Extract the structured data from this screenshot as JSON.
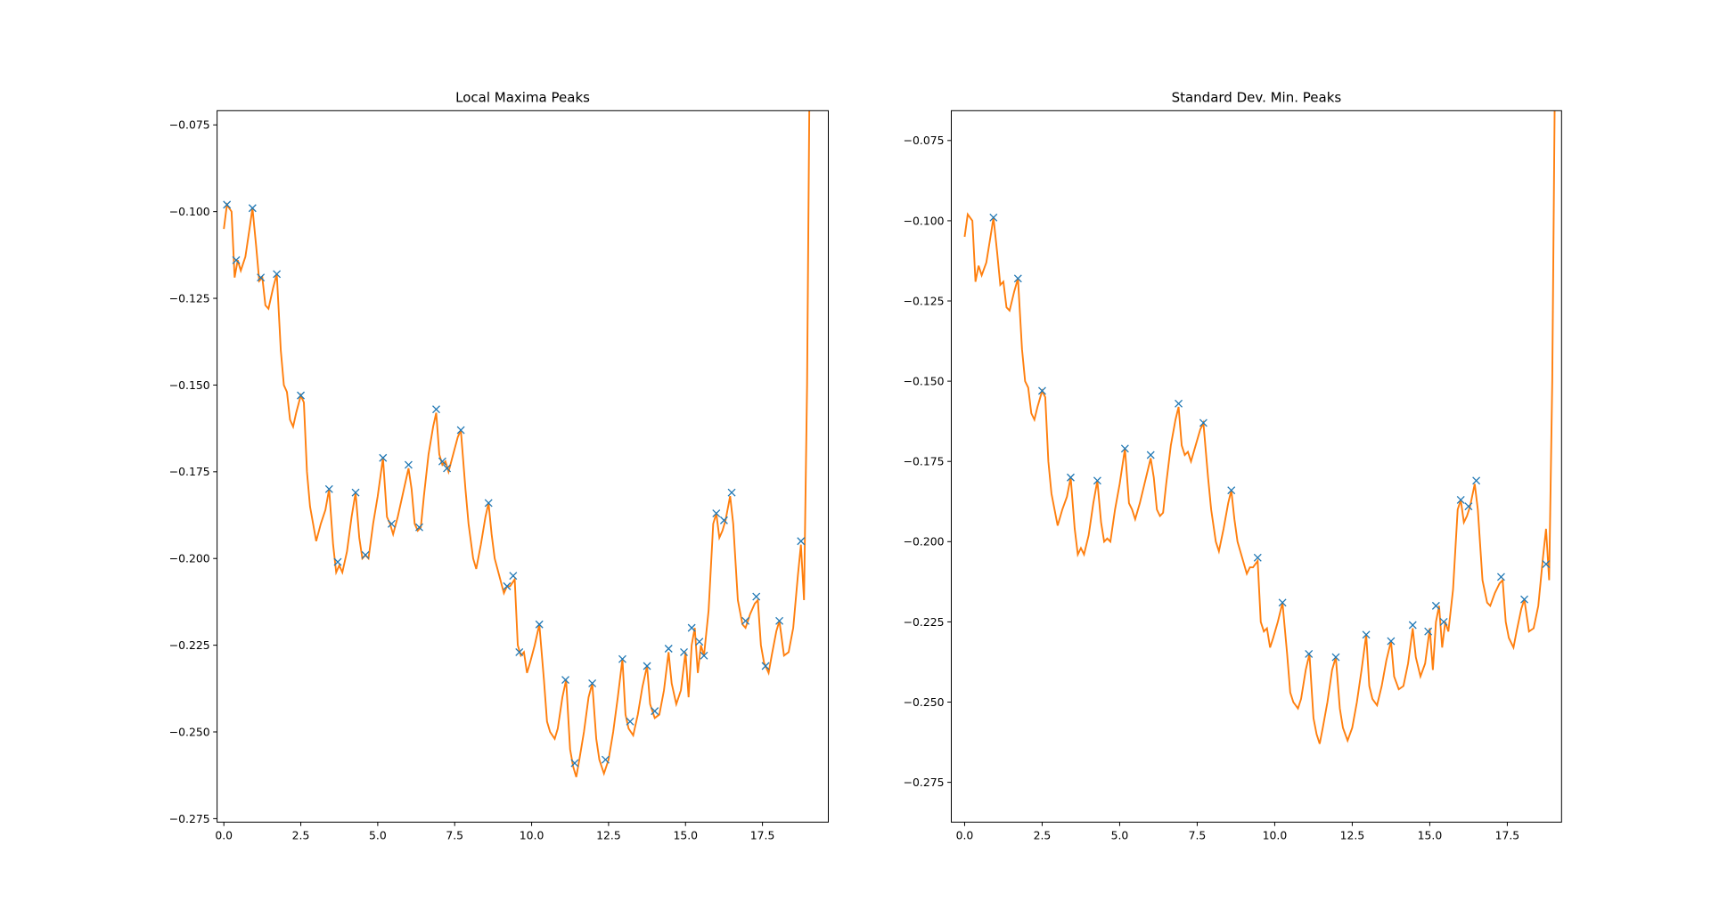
{
  "chart_data": [
    {
      "type": "line",
      "title": "Local Maxima Peaks",
      "xlim": [
        -0.22,
        19.64
      ],
      "ylim": [
        -0.276,
        -0.0709
      ],
      "xticks": [
        {
          "value": 0,
          "label": "0.0"
        },
        2.5,
        {
          "value": 5,
          "label": "5.0"
        },
        7.5,
        {
          "value": 10,
          "label": "10.0"
        },
        12.5,
        {
          "value": 15,
          "label": "15.0"
        },
        17.5
      ],
      "yticks": [
        {
          "value": -0.275,
          "label": "−0.275"
        },
        {
          "value": -0.25,
          "label": "−0.250"
        },
        {
          "value": -0.225,
          "label": "−0.225"
        },
        {
          "value": -0.2,
          "label": "−0.200"
        },
        {
          "value": -0.175,
          "label": "−0.175"
        },
        {
          "value": -0.15,
          "label": "−0.150"
        },
        {
          "value": -0.125,
          "label": "−0.125"
        },
        {
          "value": -0.1,
          "label": "−0.100"
        },
        {
          "value": -0.075,
          "label": "−0.075"
        }
      ],
      "series": [
        {
          "type": "line",
          "color": "#ff7f0e",
          "x": [
            0,
            0.1,
            0.25,
            0.35,
            0.45,
            0.55,
            0.7,
            0.85,
            0.93,
            1.05,
            1.15,
            1.25,
            1.35,
            1.45,
            1.6,
            1.72,
            1.85,
            1.95,
            2.05,
            2.15,
            2.25,
            2.35,
            2.5,
            2.6,
            2.7,
            2.8,
            2.9,
            3.0,
            3.15,
            3.3,
            3.42,
            3.55,
            3.65,
            3.75,
            3.85,
            4.0,
            4.15,
            4.28,
            4.4,
            4.5,
            4.6,
            4.7,
            4.85,
            5.0,
            5.17,
            5.3,
            5.4,
            5.5,
            5.65,
            5.8,
            6.0,
            6.1,
            6.2,
            6.3,
            6.4,
            6.5,
            6.65,
            6.8,
            6.9,
            7.0,
            7.1,
            7.2,
            7.3,
            7.45,
            7.6,
            7.7,
            7.85,
            7.95,
            8.1,
            8.2,
            8.35,
            8.5,
            8.6,
            8.7,
            8.8,
            8.95,
            9.1,
            9.2,
            9.3,
            9.45,
            9.55,
            9.65,
            9.75,
            9.85,
            9.95,
            10.1,
            10.25,
            10.4,
            10.5,
            10.6,
            10.75,
            10.85,
            11.0,
            11.12,
            11.25,
            11.35,
            11.45,
            11.55,
            11.7,
            11.85,
            11.97,
            12.1,
            12.2,
            12.35,
            12.5,
            12.65,
            12.8,
            12.95,
            13.05,
            13.15,
            13.3,
            13.45,
            13.6,
            13.75,
            13.85,
            14.0,
            14.15,
            14.3,
            14.45,
            14.55,
            14.7,
            14.85,
            15.0,
            15.1,
            15.2,
            15.3,
            15.4,
            15.5,
            15.6,
            15.75,
            15.9,
            16.0,
            16.1,
            16.2,
            16.3,
            16.45,
            16.55,
            16.7,
            16.85,
            16.95,
            17.1,
            17.25,
            17.35,
            17.45,
            17.55,
            17.7,
            17.8,
            17.95,
            18.05,
            18.2,
            18.35,
            18.5,
            18.65,
            18.75,
            18.85,
            18.95,
            19.05
          ],
          "values": [
            -0.105,
            -0.098,
            -0.1,
            -0.119,
            -0.114,
            -0.117,
            -0.113,
            -0.104,
            -0.099,
            -0.11,
            -0.12,
            -0.119,
            -0.127,
            -0.128,
            -0.122,
            -0.118,
            -0.14,
            -0.15,
            -0.152,
            -0.16,
            -0.162,
            -0.158,
            -0.153,
            -0.155,
            -0.175,
            -0.185,
            -0.19,
            -0.195,
            -0.19,
            -0.186,
            -0.18,
            -0.196,
            -0.204,
            -0.202,
            -0.204,
            -0.198,
            -0.188,
            -0.181,
            -0.194,
            -0.2,
            -0.199,
            -0.2,
            -0.19,
            -0.182,
            -0.171,
            -0.188,
            -0.19,
            -0.193,
            -0.188,
            -0.182,
            -0.174,
            -0.18,
            -0.19,
            -0.192,
            -0.191,
            -0.182,
            -0.17,
            -0.162,
            -0.158,
            -0.17,
            -0.173,
            -0.172,
            -0.175,
            -0.17,
            -0.165,
            -0.163,
            -0.18,
            -0.19,
            -0.2,
            -0.203,
            -0.196,
            -0.188,
            -0.184,
            -0.193,
            -0.2,
            -0.205,
            -0.21,
            -0.208,
            -0.208,
            -0.206,
            -0.225,
            -0.228,
            -0.227,
            -0.233,
            -0.23,
            -0.225,
            -0.219,
            -0.235,
            -0.247,
            -0.25,
            -0.252,
            -0.249,
            -0.24,
            -0.235,
            -0.255,
            -0.26,
            -0.263,
            -0.258,
            -0.25,
            -0.24,
            -0.236,
            -0.252,
            -0.258,
            -0.262,
            -0.258,
            -0.25,
            -0.24,
            -0.229,
            -0.245,
            -0.249,
            -0.251,
            -0.245,
            -0.237,
            -0.231,
            -0.242,
            -0.246,
            -0.245,
            -0.238,
            -0.227,
            -0.236,
            -0.242,
            -0.238,
            -0.227,
            -0.24,
            -0.225,
            -0.22,
            -0.233,
            -0.225,
            -0.228,
            -0.215,
            -0.19,
            -0.187,
            -0.194,
            -0.192,
            -0.189,
            -0.182,
            -0.19,
            -0.212,
            -0.219,
            -0.22,
            -0.216,
            -0.213,
            -0.212,
            -0.225,
            -0.23,
            -0.233,
            -0.228,
            -0.221,
            -0.218,
            -0.228,
            -0.227,
            -0.22,
            -0.205,
            -0.196,
            -0.212,
            -0.15,
            -0.04
          ]
        },
        {
          "type": "scatter",
          "color": "#1f77b4",
          "x": [
            0.1,
            0.4,
            0.93,
            1.2,
            1.72,
            2.5,
            3.42,
            3.7,
            4.28,
            4.6,
            5.17,
            5.45,
            6.0,
            6.35,
            6.9,
            7.1,
            7.25,
            7.7,
            8.6,
            9.2,
            9.4,
            9.6,
            10.25,
            11.1,
            11.4,
            11.97,
            12.4,
            12.95,
            13.2,
            13.75,
            14.0,
            14.45,
            14.95,
            15.2,
            15.45,
            15.6,
            16.0,
            16.25,
            16.5,
            16.95,
            17.3,
            17.6,
            18.05,
            18.75
          ],
          "values": [
            -0.098,
            -0.114,
            -0.099,
            -0.119,
            -0.118,
            -0.153,
            -0.18,
            -0.201,
            -0.181,
            -0.199,
            -0.171,
            -0.19,
            -0.173,
            -0.191,
            -0.157,
            -0.172,
            -0.174,
            -0.163,
            -0.184,
            -0.208,
            -0.205,
            -0.227,
            -0.219,
            -0.235,
            -0.259,
            -0.236,
            -0.258,
            -0.229,
            -0.247,
            -0.231,
            -0.244,
            -0.226,
            -0.227,
            -0.22,
            -0.224,
            -0.228,
            -0.187,
            -0.189,
            -0.181,
            -0.218,
            -0.211,
            -0.231,
            -0.218,
            -0.195
          ]
        }
      ]
    },
    {
      "type": "line",
      "title": "Standard Dev. Min. Peaks",
      "xlim": [
        -0.43,
        19.25
      ],
      "ylim": [
        -0.2874,
        -0.0657
      ],
      "xticks": [
        {
          "value": 0,
          "label": "0.0"
        },
        2.5,
        {
          "value": 5,
          "label": "5.0"
        },
        7.5,
        {
          "value": 10,
          "label": "10.0"
        },
        12.5,
        {
          "value": 15,
          "label": "15.0"
        },
        17.5
      ],
      "yticks": [
        {
          "value": -0.275,
          "label": "−0.275"
        },
        {
          "value": -0.25,
          "label": "−0.250"
        },
        {
          "value": -0.225,
          "label": "−0.225"
        },
        {
          "value": -0.2,
          "label": "−0.200"
        },
        {
          "value": -0.175,
          "label": "−0.175"
        },
        {
          "value": -0.15,
          "label": "−0.150"
        },
        {
          "value": -0.125,
          "label": "−0.125"
        },
        {
          "value": -0.1,
          "label": "−0.100"
        },
        {
          "value": -0.075,
          "label": "−0.075"
        }
      ],
      "series": [
        {
          "type": "line",
          "color": "#ff7f0e",
          "x": [
            0,
            0.1,
            0.25,
            0.35,
            0.45,
            0.55,
            0.7,
            0.85,
            0.93,
            1.05,
            1.15,
            1.25,
            1.35,
            1.45,
            1.6,
            1.72,
            1.85,
            1.95,
            2.05,
            2.15,
            2.25,
            2.35,
            2.5,
            2.6,
            2.7,
            2.8,
            2.9,
            3.0,
            3.15,
            3.3,
            3.42,
            3.55,
            3.65,
            3.75,
            3.85,
            4.0,
            4.15,
            4.28,
            4.4,
            4.5,
            4.6,
            4.7,
            4.85,
            5.0,
            5.17,
            5.3,
            5.4,
            5.5,
            5.65,
            5.8,
            6.0,
            6.1,
            6.2,
            6.3,
            6.4,
            6.5,
            6.65,
            6.8,
            6.9,
            7.0,
            7.1,
            7.2,
            7.3,
            7.45,
            7.6,
            7.7,
            7.85,
            7.95,
            8.1,
            8.2,
            8.35,
            8.5,
            8.6,
            8.7,
            8.8,
            8.95,
            9.1,
            9.2,
            9.3,
            9.45,
            9.55,
            9.65,
            9.75,
            9.85,
            9.95,
            10.1,
            10.25,
            10.4,
            10.5,
            10.6,
            10.75,
            10.85,
            11.0,
            11.12,
            11.25,
            11.35,
            11.45,
            11.55,
            11.7,
            11.85,
            11.97,
            12.1,
            12.2,
            12.35,
            12.5,
            12.65,
            12.8,
            12.95,
            13.05,
            13.15,
            13.3,
            13.45,
            13.6,
            13.75,
            13.85,
            14.0,
            14.15,
            14.3,
            14.45,
            14.55,
            14.7,
            14.85,
            15.0,
            15.1,
            15.2,
            15.3,
            15.4,
            15.5,
            15.6,
            15.75,
            15.9,
            16.0,
            16.1,
            16.2,
            16.3,
            16.45,
            16.55,
            16.7,
            16.85,
            16.95,
            17.1,
            17.25,
            17.35,
            17.45,
            17.55,
            17.7,
            17.8,
            17.95,
            18.05,
            18.2,
            18.35,
            18.5,
            18.65,
            18.75,
            18.85,
            18.95,
            19.05
          ],
          "values": [
            -0.105,
            -0.098,
            -0.1,
            -0.119,
            -0.114,
            -0.117,
            -0.113,
            -0.104,
            -0.099,
            -0.11,
            -0.12,
            -0.119,
            -0.127,
            -0.128,
            -0.122,
            -0.118,
            -0.14,
            -0.15,
            -0.152,
            -0.16,
            -0.162,
            -0.158,
            -0.153,
            -0.155,
            -0.175,
            -0.185,
            -0.19,
            -0.195,
            -0.19,
            -0.186,
            -0.18,
            -0.196,
            -0.204,
            -0.202,
            -0.204,
            -0.198,
            -0.188,
            -0.181,
            -0.194,
            -0.2,
            -0.199,
            -0.2,
            -0.19,
            -0.182,
            -0.171,
            -0.188,
            -0.19,
            -0.193,
            -0.188,
            -0.182,
            -0.174,
            -0.18,
            -0.19,
            -0.192,
            -0.191,
            -0.182,
            -0.17,
            -0.162,
            -0.158,
            -0.17,
            -0.173,
            -0.172,
            -0.175,
            -0.17,
            -0.165,
            -0.163,
            -0.18,
            -0.19,
            -0.2,
            -0.203,
            -0.196,
            -0.188,
            -0.184,
            -0.193,
            -0.2,
            -0.205,
            -0.21,
            -0.208,
            -0.208,
            -0.206,
            -0.225,
            -0.228,
            -0.227,
            -0.233,
            -0.23,
            -0.225,
            -0.219,
            -0.235,
            -0.247,
            -0.25,
            -0.252,
            -0.249,
            -0.24,
            -0.235,
            -0.255,
            -0.26,
            -0.263,
            -0.258,
            -0.25,
            -0.24,
            -0.236,
            -0.252,
            -0.258,
            -0.262,
            -0.258,
            -0.25,
            -0.24,
            -0.229,
            -0.245,
            -0.249,
            -0.251,
            -0.245,
            -0.237,
            -0.231,
            -0.242,
            -0.246,
            -0.245,
            -0.238,
            -0.227,
            -0.236,
            -0.242,
            -0.238,
            -0.227,
            -0.24,
            -0.225,
            -0.22,
            -0.233,
            -0.225,
            -0.228,
            -0.215,
            -0.19,
            -0.187,
            -0.194,
            -0.192,
            -0.189,
            -0.182,
            -0.19,
            -0.212,
            -0.219,
            -0.22,
            -0.216,
            -0.213,
            -0.212,
            -0.225,
            -0.23,
            -0.233,
            -0.228,
            -0.221,
            -0.218,
            -0.228,
            -0.227,
            -0.22,
            -0.205,
            -0.196,
            -0.212,
            -0.15,
            -0.04
          ]
        },
        {
          "type": "scatter",
          "color": "#1f77b4",
          "x": [
            0.93,
            1.72,
            2.5,
            3.42,
            4.28,
            5.17,
            6.0,
            6.9,
            7.7,
            8.6,
            9.45,
            10.25,
            11.1,
            11.97,
            12.95,
            13.75,
            14.45,
            14.95,
            15.2,
            15.45,
            16.0,
            16.25,
            16.5,
            17.3,
            18.05,
            18.75
          ],
          "values": [
            -0.099,
            -0.118,
            -0.153,
            -0.18,
            -0.181,
            -0.171,
            -0.173,
            -0.157,
            -0.163,
            -0.184,
            -0.205,
            -0.219,
            -0.235,
            -0.236,
            -0.229,
            -0.231,
            -0.226,
            -0.228,
            -0.22,
            -0.225,
            -0.187,
            -0.189,
            -0.181,
            -0.211,
            -0.218,
            -0.207
          ]
        }
      ]
    }
  ]
}
